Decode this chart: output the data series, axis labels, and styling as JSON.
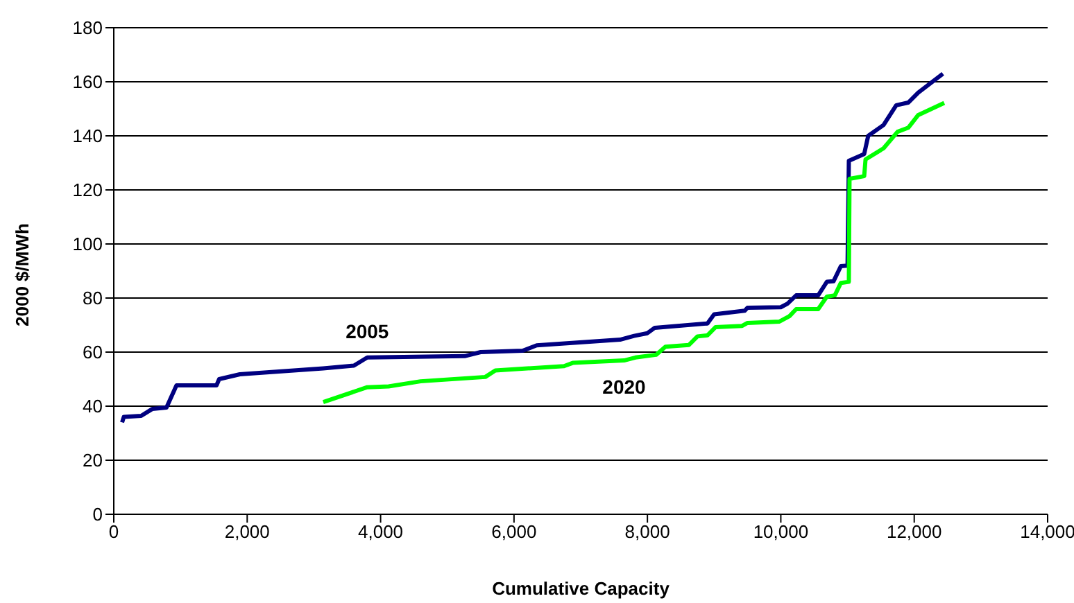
{
  "chart_data": {
    "type": "line",
    "xlabel": "Cumulative Capacity",
    "ylabel": "2000 $/MWh",
    "xlim": [
      0,
      14000
    ],
    "xticks": [
      0,
      {
        "value": 2000,
        "label": "2,000"
      },
      {
        "value": 4000,
        "label": "4,000"
      },
      {
        "value": 6000,
        "label": "6,000"
      },
      {
        "value": 8000,
        "label": "8,000"
      },
      {
        "value": 10000,
        "label": "10,000"
      },
      {
        "value": 12000,
        "label": "12,000"
      },
      {
        "value": 14000,
        "label": "14,000"
      }
    ],
    "ylim": [
      0,
      180
    ],
    "yticks": [
      0,
      20,
      40,
      60,
      80,
      100,
      120,
      140,
      160,
      180
    ],
    "grid": "y",
    "legend": false,
    "marker": "none",
    "line_style": "solid",
    "series": [
      {
        "name": "2005",
        "color": "#000080",
        "x": [
          125,
          150,
          410,
          580,
          790,
          940,
          1540,
          1580,
          1890,
          3140,
          3600,
          3800,
          5260,
          5500,
          6130,
          6340,
          7590,
          7800,
          8000,
          8110,
          8900,
          9000,
          9460,
          9500,
          10000,
          10100,
          10230,
          10560,
          10690,
          10790,
          10900,
          11000,
          11020,
          11250,
          11310,
          11540,
          11730,
          11910,
          12060,
          12430
        ],
        "values": [
          34,
          36,
          36.4,
          39,
          39.5,
          47.7,
          47.7,
          50,
          51.8,
          54,
          55,
          58,
          58.5,
          60,
          60.5,
          62.5,
          64.6,
          66,
          67,
          69,
          70.6,
          74,
          75.3,
          76.4,
          76.6,
          77.9,
          81,
          81,
          86,
          86.2,
          91.8,
          92,
          130.8,
          133.3,
          140,
          144,
          151.3,
          152.3,
          156,
          163
        ]
      },
      {
        "name": "2020",
        "color": "#00ff00",
        "x": [
          3140,
          3800,
          4120,
          4600,
          5570,
          5720,
          6750,
          6880,
          7650,
          7820,
          8130,
          8270,
          8620,
          8750,
          8900,
          9020,
          9420,
          9500,
          9980,
          10130,
          10230,
          10560,
          10690,
          10810,
          10900,
          11020,
          11030,
          11250,
          11270,
          11540,
          11750,
          11910,
          12060,
          12450
        ],
        "values": [
          41.5,
          47,
          47.3,
          49.2,
          50.8,
          53.2,
          54.8,
          56,
          56.9,
          58,
          59,
          62,
          62.6,
          65.8,
          66.2,
          69.2,
          69.7,
          70.8,
          71.3,
          73.3,
          75.9,
          75.9,
          80.5,
          81,
          85.6,
          86,
          124.1,
          125.1,
          131.3,
          135.4,
          141.5,
          143,
          147.7,
          152.2
        ]
      }
    ]
  }
}
